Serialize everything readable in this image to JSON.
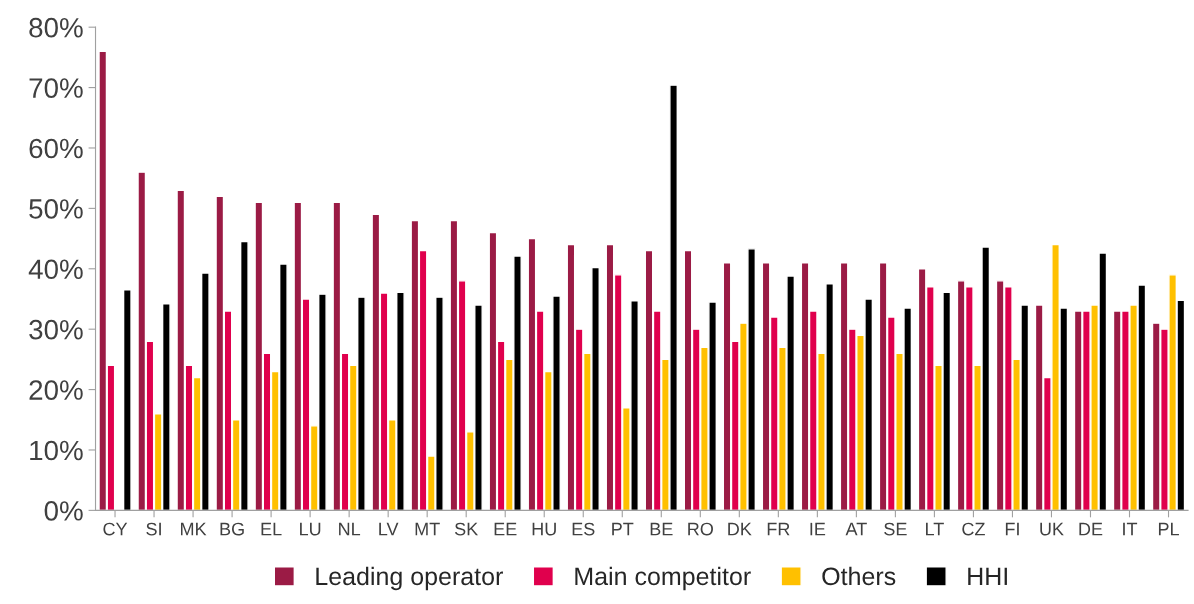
{
  "chart_data": {
    "type": "bar",
    "categories": [
      "CY",
      "SI",
      "MK",
      "BG",
      "EL",
      "LU",
      "NL",
      "LV",
      "MT",
      "SK",
      "EE",
      "HU",
      "ES",
      "PT",
      "BE",
      "RO",
      "DK",
      "FR",
      "IE",
      "AT",
      "SE",
      "LT",
      "CZ",
      "FI",
      "UK",
      "DE",
      "IT",
      "PL"
    ],
    "series": [
      {
        "name": "Leading operator",
        "color": "#9b1b45",
        "values": [
          76,
          56,
          53,
          52,
          51,
          51,
          51,
          49,
          48,
          48,
          46,
          45,
          44,
          44,
          43,
          43,
          41,
          41,
          41,
          41,
          41,
          40,
          38,
          38,
          34,
          33,
          33,
          31
        ]
      },
      {
        "name": "Main competitor",
        "color": "#e0004d",
        "values": [
          24,
          28,
          24,
          33,
          26,
          35,
          26,
          36,
          43,
          38,
          28,
          33,
          30,
          39,
          33,
          30,
          28,
          32,
          33,
          30,
          32,
          37,
          37,
          37,
          22,
          33,
          33,
          30
        ]
      },
      {
        "name": "Others",
        "color": "#ffc000",
        "values": [
          null,
          16,
          22,
          15,
          23,
          14,
          24,
          15,
          9,
          13,
          25,
          23,
          26,
          17,
          25,
          27,
          31,
          27,
          26,
          29,
          26,
          24,
          24,
          25,
          44,
          34,
          34,
          39
        ]
      },
      {
        "name": "HHI",
        "color": "#000000",
        "values": [
          36.5,
          34.2,
          39.3,
          44.5,
          40.8,
          35.8,
          35.3,
          36.1,
          35.3,
          34,
          42.1,
          35.5,
          40.2,
          34.7,
          70.4,
          34.5,
          43.3,
          38.8,
          37.5,
          35,
          33.5,
          36.1,
          43.6,
          34,
          33.5,
          42.6,
          37.3,
          34.8
        ]
      }
    ],
    "ylim": [
      0,
      80
    ],
    "yticks": [
      {
        "value": 0,
        "label": "0%"
      },
      {
        "value": 10,
        "label": "10%"
      },
      {
        "value": 20,
        "label": "20%"
      },
      {
        "value": 30,
        "label": "30%"
      },
      {
        "value": 40,
        "label": "40%"
      },
      {
        "value": 50,
        "label": "50%"
      },
      {
        "value": 60,
        "label": "60%"
      },
      {
        "value": 70,
        "label": "70%"
      },
      {
        "value": 80,
        "label": "80%"
      }
    ],
    "grid": false,
    "legend": "bottom"
  }
}
